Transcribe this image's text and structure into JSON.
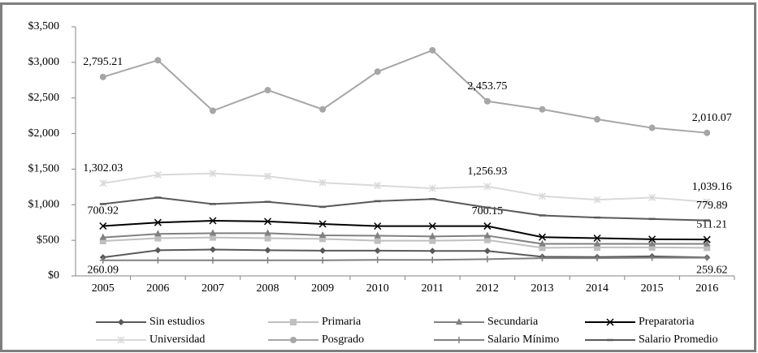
{
  "chart_data": {
    "type": "line",
    "categories": [
      "2005",
      "2006",
      "2007",
      "2008",
      "2009",
      "2010",
      "2011",
      "2012",
      "2013",
      "2014",
      "2015",
      "2016"
    ],
    "ylim": [
      0,
      3500
    ],
    "yticks": [
      {
        "value": 0,
        "label": "$0"
      },
      {
        "value": 500,
        "label": "$500"
      },
      {
        "value": 1000,
        "label": "$1,000"
      },
      {
        "value": 1500,
        "label": "$1,500"
      },
      {
        "value": 2000,
        "label": "$2,000"
      },
      {
        "value": 2500,
        "label": "$2,500"
      },
      {
        "value": 3000,
        "label": "$3,000"
      },
      {
        "value": 3500,
        "label": "$3,500"
      }
    ],
    "grid": false,
    "series": [
      {
        "name": "Sin estudios",
        "color": "#595959",
        "marker": "diamond",
        "values": [
          260.09,
          360,
          370,
          360,
          355,
          355,
          350,
          350,
          270,
          265,
          275,
          259.62
        ],
        "value_labels": [
          "260.09",
          null,
          null,
          null,
          null,
          null,
          null,
          null,
          null,
          null,
          null,
          "259.62"
        ]
      },
      {
        "name": "Primaria",
        "color": "#bfbfbf",
        "marker": "square",
        "values": [
          490,
          530,
          540,
          530,
          520,
          495,
          495,
          505,
          395,
          400,
          400,
          395
        ]
      },
      {
        "name": "Secundaria",
        "color": "#808080",
        "marker": "triangle",
        "values": [
          540,
          590,
          600,
          600,
          570,
          565,
          555,
          565,
          450,
          450,
          450,
          450
        ]
      },
      {
        "name": "Preparatoria",
        "color": "#000000",
        "marker": "x",
        "values": [
          700.92,
          750,
          775,
          765,
          730,
          700,
          700,
          700.15,
          545,
          530,
          515,
          511.21
        ],
        "value_labels": [
          "700.92",
          null,
          null,
          null,
          null,
          null,
          null,
          "700.15",
          null,
          null,
          null,
          "511.21"
        ]
      },
      {
        "name": "Universidad",
        "color": "#d9d9d9",
        "marker": "star",
        "values": [
          1302.03,
          1420,
          1440,
          1400,
          1310,
          1270,
          1230,
          1256.93,
          1120,
          1070,
          1100,
          1039.16
        ],
        "value_labels": [
          "1,302.03",
          null,
          null,
          null,
          null,
          null,
          null,
          "1,256.93",
          null,
          null,
          null,
          "1,039.16"
        ]
      },
      {
        "name": "Posgrado",
        "color": "#a6a6a6",
        "marker": "circle",
        "values": [
          2795.21,
          3030,
          2320,
          2610,
          2340,
          2870,
          3170,
          2453.75,
          2340,
          2200,
          2080,
          2010.07
        ],
        "value_labels": [
          "2,795.21",
          null,
          null,
          null,
          null,
          null,
          null,
          "2,453.75",
          null,
          null,
          null,
          "2,010.07"
        ]
      },
      {
        "name": "Salario Mínimo",
        "color": "#808080",
        "marker": "plus",
        "values": [
          220,
          220,
          220,
          220,
          220,
          225,
          225,
          235,
          250,
          250,
          255,
          255
        ]
      },
      {
        "name": "Salario Promedio",
        "color": "#595959",
        "marker": "dash",
        "values": [
          1010,
          1100,
          1010,
          1040,
          970,
          1050,
          1080,
          960,
          850,
          820,
          800,
          779.89
        ],
        "value_labels": [
          null,
          null,
          null,
          null,
          null,
          null,
          null,
          null,
          null,
          null,
          null,
          "779.89"
        ]
      }
    ]
  }
}
